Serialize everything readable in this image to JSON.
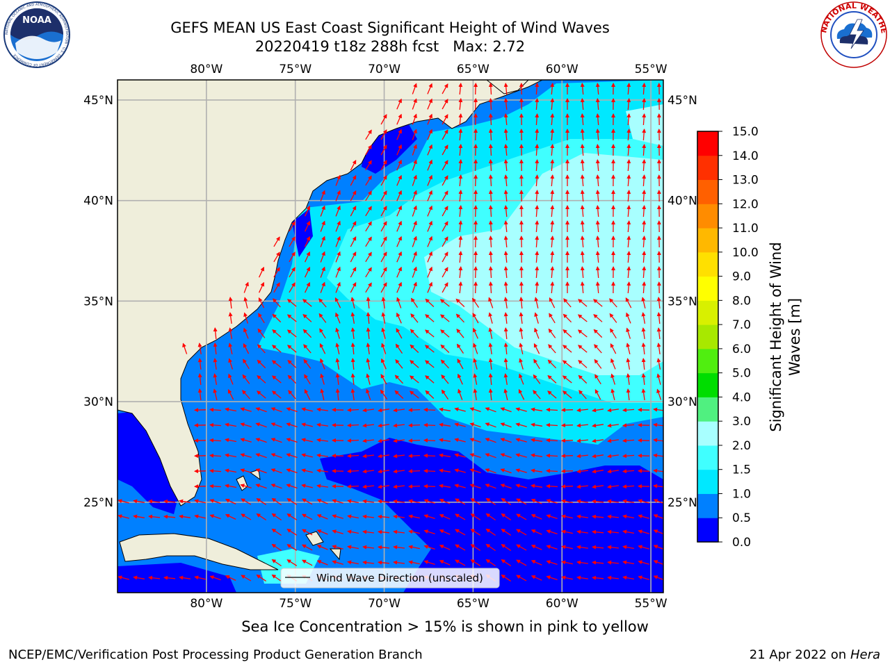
{
  "title": "GEFS MEAN US East Coast Significant Height of Wind Waves",
  "subtitle": "20220419 t18z 288h fcst   Max: 2.72",
  "footnote": "Sea Ice Concentration > 15% is shown in pink to yellow",
  "credit_left": "NCEP/EMC/Verification Post Processing Product Generation Branch",
  "credit_right_date": "21 Apr 2022 on ",
  "credit_right_host": "Hera",
  "legend_label": "Wind Wave Direction (unscaled)",
  "logos": {
    "noaa_text": "NOAA",
    "noaa_ring": "NATIONAL OCEANIC AND ATMOSPHERIC ADMINISTRATION · U.S. DEPARTMENT OF COMMERCE",
    "nws_ring": "NATIONAL WEATHER SERVICE"
  },
  "colors": {
    "land": "#efeedb",
    "arrow": "#ff0000",
    "grid": "#b0b0b0"
  },
  "map": {
    "lon_labels": [
      "80°W",
      "75°W",
      "70°W",
      "65°W",
      "60°W",
      "55°W"
    ],
    "lon_values": [
      -80,
      -75,
      -70,
      -65,
      -60,
      -55
    ],
    "lat_labels": [
      "45°N",
      "40°N",
      "35°N",
      "30°N",
      "25°N"
    ],
    "lat_values": [
      45,
      40,
      35,
      30,
      25
    ],
    "lon_range": [
      -85,
      -54.3
    ],
    "lat_range": [
      20.5,
      46
    ]
  },
  "colorbar": {
    "label_line1": "Significant Height of Wind",
    "label_line2": "Waves [m]",
    "ticks": [
      "0.0",
      "0.5",
      "1.0",
      "1.5",
      "2.0",
      "3.0",
      "4.0",
      "5.0",
      "6.0",
      "7.0",
      "8.0",
      "9.0",
      "10.0",
      "11.0",
      "12.0",
      "13.0",
      "14.0",
      "15.0"
    ],
    "colors": [
      "#0000ff",
      "#0080ff",
      "#00e8ff",
      "#40ffff",
      "#a8ffff",
      "#50f080",
      "#00dd00",
      "#50ee10",
      "#a8e800",
      "#d8f000",
      "#ffff00",
      "#ffe000",
      "#ffb800",
      "#ff8c00",
      "#ff6000",
      "#ff3000",
      "#ff0000"
    ]
  },
  "chart_data": {
    "type": "heatmap",
    "title": "GEFS MEAN US East Coast Significant Height of Wind Waves",
    "subtitle": "20220419 t18z 288h fcst   Max: 2.72",
    "variable": "Significant Height of Wind Waves [m]",
    "max": 2.72,
    "xlim": [
      -85,
      -54.3
    ],
    "ylim": [
      20.5,
      46
    ],
    "xticks": [
      -80,
      -75,
      -70,
      -65,
      -60,
      -55
    ],
    "yticks": [
      25,
      30,
      35,
      40,
      45
    ],
    "bins": [
      0.0,
      0.5,
      1.0,
      1.5,
      2.0,
      3.0,
      4.0,
      5.0,
      6.0,
      7.0,
      8.0,
      9.0,
      10.0,
      11.0,
      12.0,
      13.0,
      14.0,
      15.0
    ],
    "grid": true,
    "legend": "bottom-center"
  }
}
